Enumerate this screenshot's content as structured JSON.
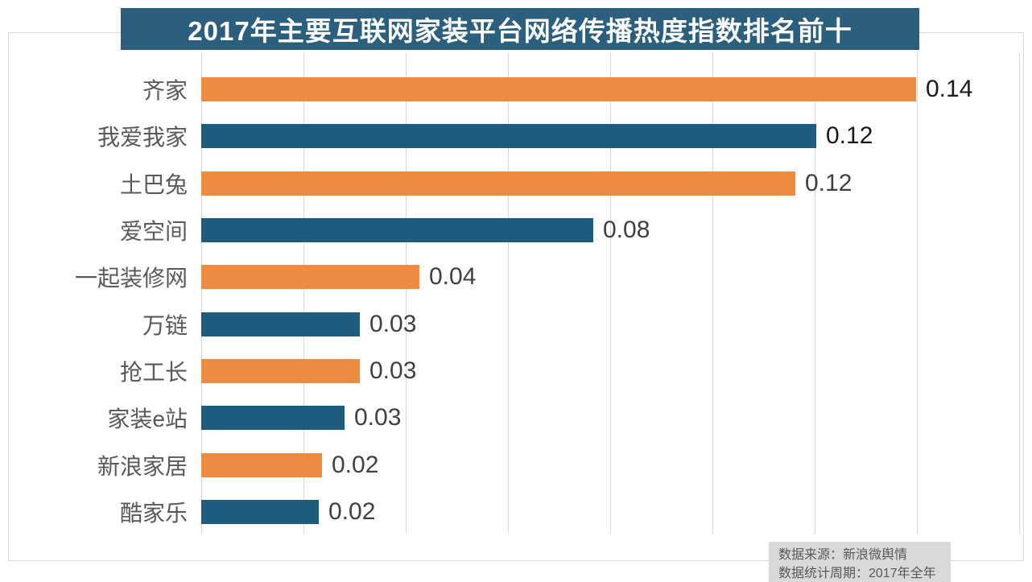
{
  "title": "2017年主要互联网家装平台网络传播热度指数排名前十",
  "footer": {
    "line1": "数据来源：新浪微舆情",
    "line2": "数据统计周期：2017年全年"
  },
  "colors": {
    "banner_bg": "#2B5F7D",
    "title_text": "#FFFFFF",
    "orange": "#ED8B40",
    "blue": "#1F5B7C",
    "grid": "#D9D9D9",
    "frame_border": "#D9D9D9",
    "category_text": "#595959",
    "value_text_dark": "#1A1A1A",
    "value_text_gray": "#404040",
    "footer_bg": "#D9D9D9",
    "footer_text": "#595959"
  },
  "chart_data": {
    "type": "bar",
    "orientation": "horizontal",
    "title": "2017年主要互联网家装平台网络传播热度指数排名前十",
    "categories": [
      "齐家",
      "我爱我家",
      "土巴兔",
      "爱空间",
      "一起装修网",
      "万链",
      "抢工长",
      "家装e站",
      "新浪家居",
      "酷家乐"
    ],
    "values": [
      0.14,
      0.12,
      0.12,
      0.08,
      0.04,
      0.03,
      0.03,
      0.03,
      0.02,
      0.02
    ],
    "value_labels": [
      "0.14",
      "0.12",
      "0.12",
      "0.08",
      "0.04",
      "0.03",
      "0.03",
      "0.03",
      "0.02",
      "0.02"
    ],
    "bar_lengths_est": [
      0.1398,
      0.1203,
      0.1162,
      0.0767,
      0.0427,
      0.031,
      0.031,
      0.028,
      0.0236,
      0.023
    ],
    "bar_colors": [
      "orange",
      "blue",
      "orange",
      "blue",
      "orange",
      "blue",
      "orange",
      "blue",
      "orange",
      "blue"
    ],
    "value_label_styles": [
      "dark",
      "dark",
      "gray",
      "gray",
      "gray",
      "gray",
      "gray",
      "gray",
      "gray",
      "gray"
    ],
    "xlabel": "",
    "ylabel": "",
    "xlim": [
      0,
      0.16
    ],
    "grid_step": 0.02,
    "grid": true,
    "legend": false,
    "source_note": "数据来源：新浪微舆情",
    "period_note": "数据统计周期：2017年全年"
  }
}
